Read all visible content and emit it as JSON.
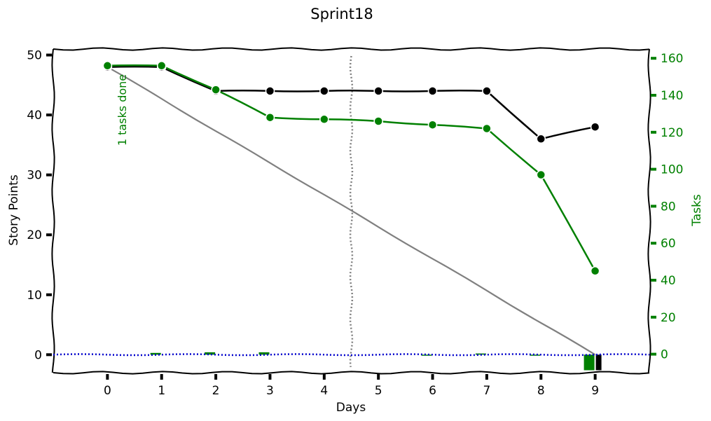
{
  "chart_data": {
    "type": "line",
    "title": "Sprint18",
    "xlabel": "Days",
    "ylabel": "Story Points",
    "ylabel_right": "Tasks",
    "annotation": "1 tasks done",
    "x": [
      0,
      1,
      2,
      3,
      4,
      5,
      6,
      7,
      8,
      9
    ],
    "xticks": [
      "0",
      "1",
      "2",
      "3",
      "4",
      "5",
      "6",
      "7",
      "8",
      "9"
    ],
    "xlim": [
      -1.0,
      10.0
    ],
    "ylim": [
      -3,
      51
    ],
    "ylim_right": [
      -10,
      165
    ],
    "yticks": [
      "0",
      "10",
      "20",
      "30",
      "40",
      "50"
    ],
    "yticks_right": [
      "0",
      "20",
      "40",
      "60",
      "80",
      "100",
      "120",
      "140",
      "160"
    ],
    "today_marker_x": 4.5,
    "series": [
      {
        "axis": "left",
        "color": "#000000",
        "values": [
          48,
          48,
          44,
          44,
          44,
          44,
          44,
          44,
          36,
          38
        ]
      },
      {
        "axis": "right",
        "color": "#008000",
        "values": [
          156,
          156,
          143,
          128,
          127,
          126,
          124,
          122,
          97,
          45
        ]
      },
      {
        "axis": "left",
        "color": "#808080",
        "style": "ideal",
        "values": [
          48,
          42.7,
          37.3,
          32.0,
          26.7,
          21.3,
          16.0,
          10.7,
          5.3,
          0
        ]
      },
      {
        "axis": "left",
        "color": "#0000cc",
        "style": "dotted",
        "x": [
          -1,
          0,
          1,
          2,
          3,
          4,
          5,
          6,
          7,
          8,
          9,
          10
        ],
        "values": [
          0,
          0,
          0,
          0,
          0,
          0,
          0,
          0,
          0,
          0,
          0,
          0
        ]
      }
    ],
    "daily_done_tasks": {
      "color": "#008000",
      "x": [
        1,
        2,
        3,
        6,
        7,
        8,
        9
      ],
      "values": [
        0.3,
        0.4,
        0.4,
        -0.1,
        0.2,
        -0.1,
        -2.6
      ]
    },
    "daily_done_points": {
      "color": "#000000",
      "x": [
        9
      ],
      "values": [
        -2.6
      ]
    },
    "grid": false
  }
}
